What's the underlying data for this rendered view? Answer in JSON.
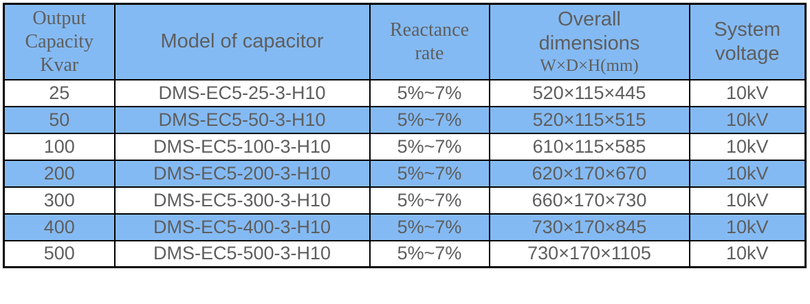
{
  "table": {
    "headers": [
      {
        "lines": [
          "Output",
          "Capacity",
          "Kvar"
        ]
      },
      {
        "lines": [
          "Model of capacitor"
        ]
      },
      {
        "lines": [
          "Reactance",
          "rate"
        ]
      },
      {
        "lines": [
          "Overall",
          "dimensions"
        ],
        "sub": "W×D×H(mm)"
      },
      {
        "lines": [
          "System",
          "voltage"
        ]
      }
    ],
    "rows": [
      [
        "25",
        "DMS-EC5-25-3-H10",
        "5%~7%",
        "520×115×445",
        "10kV"
      ],
      [
        "50",
        "DMS-EC5-50-3-H10",
        "5%~7%",
        "520×115×515",
        "10kV"
      ],
      [
        "100",
        "DMS-EC5-100-3-H10",
        "5%~7%",
        "610×115×585",
        "10kV"
      ],
      [
        "200",
        "DMS-EC5-200-3-H10",
        "5%~7%",
        "620×170×670",
        "10kV"
      ],
      [
        "300",
        "DMS-EC5-300-3-H10",
        "5%~7%",
        "660×170×730",
        "10kV"
      ],
      [
        "400",
        "DMS-EC5-400-3-H10",
        "5%~7%",
        "730×170×845",
        "10kV"
      ],
      [
        "500",
        "DMS-EC5-500-3-H10",
        "5%~7%",
        "730×170×1105",
        "10kV"
      ]
    ],
    "colors": {
      "header_background": "#84baf3",
      "row_alt_background": "#84baf3",
      "row_background": "#ffffff",
      "text": "#5e5e5e",
      "border": "#000000"
    }
  }
}
